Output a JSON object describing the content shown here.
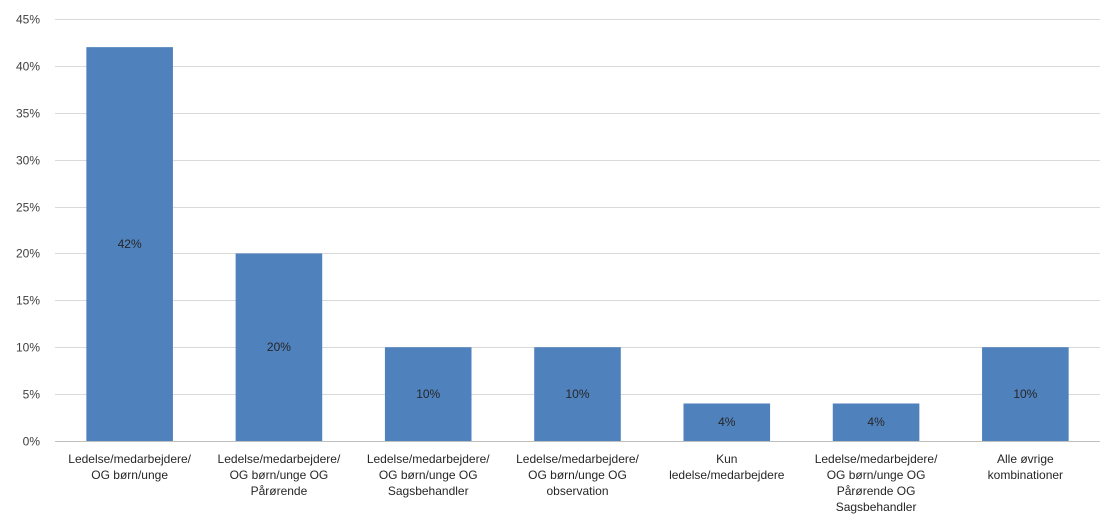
{
  "chart_data": {
    "type": "bar",
    "categories": [
      [
        "Ledelse/medarbejdere/",
        "OG børn/unge"
      ],
      [
        "Ledelse/medarbejdere/",
        "OG børn/unge OG",
        "Pårørende"
      ],
      [
        "Ledelse/medarbejdere/",
        "OG børn/unge OG",
        "Sagsbehandler"
      ],
      [
        "Ledelse/medarbejdere/",
        "OG børn/unge OG",
        "observation"
      ],
      [
        "Kun",
        "ledelse/medarbejdere"
      ],
      [
        "Ledelse/medarbejdere/",
        "OG børn/unge OG",
        "Pårørende OG",
        "Sagsbehandler"
      ],
      [
        "Alle øvrige",
        "kombinationer"
      ]
    ],
    "values": [
      42,
      20,
      10,
      10,
      4,
      4,
      10
    ],
    "data_labels": [
      "42%",
      "20%",
      "10%",
      "10%",
      "4%",
      "4%",
      "10%"
    ],
    "ylim": [
      0,
      45
    ],
    "yticks": [
      0,
      5,
      10,
      15,
      20,
      25,
      30,
      35,
      40,
      45
    ],
    "ytick_labels": [
      "0%",
      "5%",
      "10%",
      "15%",
      "20%",
      "25%",
      "30%",
      "35%",
      "40%",
      "45%"
    ],
    "grid": true,
    "legend": "none",
    "bar_color": "#4f81bd",
    "title": "",
    "xlabel": "",
    "ylabel": ""
  }
}
